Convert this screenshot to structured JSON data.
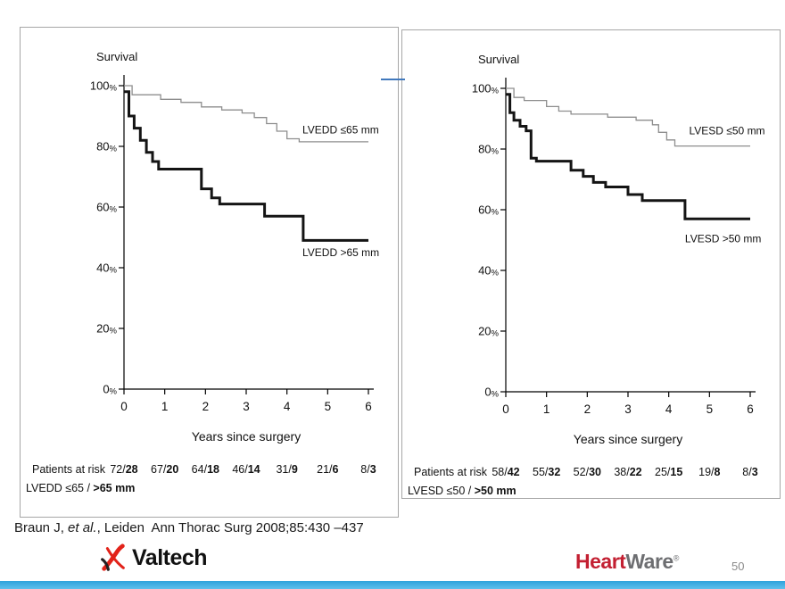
{
  "slide": {
    "citation": {
      "prefix": "Braun J, ",
      "italic": "et al.",
      "suffix": ", Leiden  Ann Thorac Surg 2008;85:430 –437"
    },
    "page_number": "50",
    "valtech_label": "Valtech",
    "heartware": {
      "heart": "Heart",
      "ware": "Ware",
      "reg": "®"
    },
    "colors": {
      "accent_bar": "#2FA2DB",
      "accent_bar_light": "#5FC0EC",
      "divider_blue": "#4179BD",
      "valtech_red": "#E2231A",
      "valtech_dark": "#231F20",
      "heartware_red": "#C32032",
      "heartware_gray": "#6D6E71",
      "curve_thin": "#8E8E8E",
      "curve_thick": "#141414",
      "panel_border": "#A6A6A6",
      "page_number_gray": "#8A8A8A"
    }
  },
  "chart_data": [
    {
      "type": "line",
      "subtype": "kaplan-meier-step",
      "title": "Survival",
      "xlabel": "Years since surgery",
      "ylabel": "Survival",
      "xlim": [
        0,
        6
      ],
      "ylim": [
        0,
        100
      ],
      "x_ticks": [
        0,
        1,
        2,
        3,
        4,
        5,
        6
      ],
      "y_ticks": [
        0,
        20,
        40,
        60,
        80,
        100
      ],
      "y_tick_suffix": "%",
      "grid": false,
      "legend_position": "inline-right",
      "series": [
        {
          "name": "LVEDD ≤65 mm",
          "style": "thin",
          "label_at": [
            4.38,
            85.5
          ],
          "points": [
            [
              0,
              100
            ],
            [
              0.2,
              97
            ],
            [
              0.9,
              95.5
            ],
            [
              1.4,
              94.5
            ],
            [
              1.9,
              93
            ],
            [
              2.4,
              92
            ],
            [
              2.9,
              91
            ],
            [
              3.2,
              89.5
            ],
            [
              3.5,
              87.5
            ],
            [
              3.75,
              85
            ],
            [
              4.0,
              82.5
            ],
            [
              4.3,
              81.5
            ]
          ]
        },
        {
          "name": "LVEDD >65 mm",
          "style": "thick",
          "label_at": [
            4.38,
            45
          ],
          "points": [
            [
              0,
              98
            ],
            [
              0.12,
              90
            ],
            [
              0.25,
              86
            ],
            [
              0.4,
              82
            ],
            [
              0.55,
              78
            ],
            [
              0.7,
              75
            ],
            [
              0.85,
              72.5
            ],
            [
              1.9,
              66
            ],
            [
              2.15,
              63
            ],
            [
              2.35,
              61
            ],
            [
              3.45,
              57
            ],
            [
              4.4,
              49
            ]
          ]
        }
      ],
      "patients_at_risk": {
        "label": "Patients at risk",
        "values": [
          "72/28",
          "67/20",
          "64/18",
          "46/14",
          "31/9",
          "21/6",
          "8/3"
        ],
        "row_label_normal": "LVEDD ≤65 / ",
        "row_label_bold": ">65 mm"
      }
    },
    {
      "type": "line",
      "subtype": "kaplan-meier-step",
      "title": "Survival",
      "xlabel": "Years since surgery",
      "ylabel": "Survival",
      "xlim": [
        0,
        6
      ],
      "ylim": [
        0,
        100
      ],
      "x_ticks": [
        0,
        1,
        2,
        3,
        4,
        5,
        6
      ],
      "y_ticks": [
        0,
        20,
        40,
        60,
        80,
        100
      ],
      "y_tick_suffix": "%",
      "grid": false,
      "legend_position": "inline-right",
      "series": [
        {
          "name": "LVESD ≤50 mm",
          "style": "thin",
          "label_at": [
            4.5,
            86
          ],
          "points": [
            [
              0,
              100
            ],
            [
              0.2,
              97
            ],
            [
              0.45,
              96
            ],
            [
              1.0,
              94
            ],
            [
              1.3,
              92.5
            ],
            [
              1.6,
              91.5
            ],
            [
              2.5,
              90.5
            ],
            [
              3.2,
              89.5
            ],
            [
              3.6,
              88
            ],
            [
              3.75,
              85.5
            ],
            [
              3.95,
              83
            ],
            [
              4.15,
              81
            ]
          ]
        },
        {
          "name": "LVESD >50 mm",
          "style": "thick",
          "label_at": [
            4.4,
            50.5
          ],
          "points": [
            [
              0,
              98
            ],
            [
              0.1,
              92
            ],
            [
              0.2,
              89.5
            ],
            [
              0.35,
              87.5
            ],
            [
              0.5,
              86
            ],
            [
              0.62,
              77
            ],
            [
              0.75,
              76
            ],
            [
              1.6,
              73
            ],
            [
              1.9,
              71
            ],
            [
              2.15,
              69
            ],
            [
              2.45,
              67.5
            ],
            [
              3.0,
              65
            ],
            [
              3.35,
              63
            ],
            [
              4.4,
              57
            ]
          ]
        }
      ],
      "patients_at_risk": {
        "label": "Patients at risk",
        "values": [
          "58/42",
          "55/32",
          "52/30",
          "38/22",
          "25/15",
          "19/8",
          "8/3"
        ],
        "row_label_normal": "LVESD ≤50 / ",
        "row_label_bold": ">50 mm"
      }
    }
  ]
}
